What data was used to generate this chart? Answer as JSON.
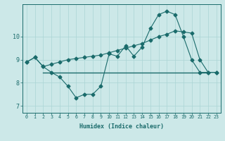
{
  "xlabel": "Humidex (Indice chaleur)",
  "bg_color": "#cce8e8",
  "line_color": "#1a6b6b",
  "grid_color": "#aad4d4",
  "xlim": [
    -0.5,
    23.5
  ],
  "ylim": [
    6.7,
    11.4
  ],
  "yticks": [
    7,
    8,
    9,
    10
  ],
  "xticks": [
    0,
    1,
    2,
    3,
    4,
    5,
    6,
    7,
    8,
    9,
    10,
    11,
    12,
    13,
    14,
    15,
    16,
    17,
    18,
    19,
    20,
    21,
    22,
    23
  ],
  "line1_x": [
    0,
    1,
    2,
    3,
    4,
    5,
    6,
    7,
    8,
    9,
    10,
    11,
    12,
    13,
    14,
    15,
    16,
    17,
    18,
    19,
    20,
    21,
    22,
    23
  ],
  "line1_y": [
    8.9,
    9.1,
    8.7,
    8.45,
    8.25,
    7.85,
    7.35,
    7.5,
    7.5,
    7.85,
    9.25,
    9.15,
    9.6,
    9.15,
    9.55,
    10.35,
    10.95,
    11.1,
    10.95,
    10.0,
    9.0,
    8.45,
    8.45,
    8.45
  ],
  "line2_x": [
    2,
    22
  ],
  "line2_y": [
    8.45,
    8.45
  ],
  "line3_x": [
    0,
    1,
    2,
    3,
    4,
    5,
    6,
    7,
    8,
    9,
    10,
    11,
    12,
    13,
    14,
    15,
    16,
    17,
    18,
    19,
    20,
    21,
    22,
    23
  ],
  "line3_y": [
    8.9,
    9.1,
    8.7,
    8.8,
    8.9,
    9.0,
    9.05,
    9.1,
    9.15,
    9.2,
    9.3,
    9.4,
    9.5,
    9.6,
    9.7,
    9.85,
    10.0,
    10.1,
    10.25,
    10.2,
    10.15,
    9.0,
    8.45,
    8.45
  ]
}
